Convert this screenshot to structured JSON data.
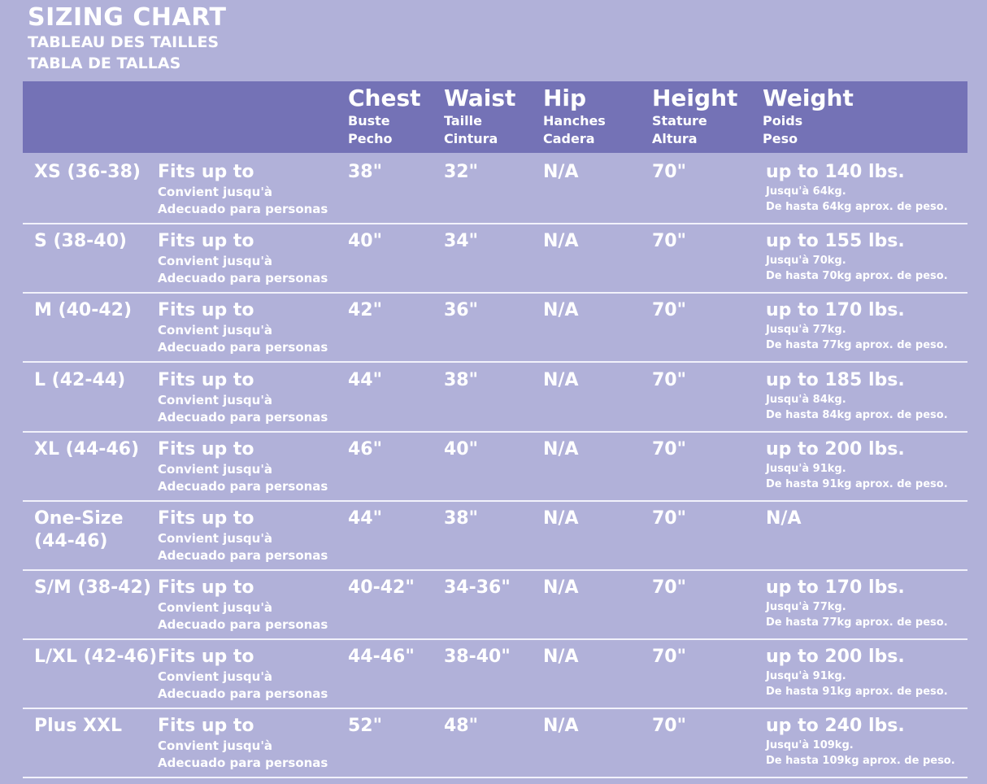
{
  "title": "SIZING CHART",
  "subtitle_fr": "TABLEAU DES TAILLES",
  "subtitle_es": "TABLA DE TALLAS",
  "colors": {
    "background": "#b1b1d9",
    "header": "#7472b6",
    "text": "#ffffff"
  },
  "columns": [
    {
      "en": "Chest",
      "fr": "Buste",
      "es": "Pecho"
    },
    {
      "en": "Waist",
      "fr": "Taille",
      "es": "Cintura"
    },
    {
      "en": "Hip",
      "fr": "Hanches",
      "es": "Cadera"
    },
    {
      "en": "Height",
      "fr": "Stature",
      "es": "Altura"
    },
    {
      "en": "Weight",
      "fr": "Poids",
      "es": "Peso"
    }
  ],
  "rows": [
    {
      "size": "XS (36-38)",
      "fits": "Fits up to",
      "fits_fr": "Convient jusqu'à",
      "fits_es": "Adecuado para personas",
      "chest": "38\"",
      "waist": "32\"",
      "hip": "N/A",
      "height": "70\"",
      "weight": "up to 140 lbs.",
      "weight_fr": "Jusqu'à 64kg.",
      "weight_es": "De hasta 64kg aprox. de peso."
    },
    {
      "size": "S (38-40)",
      "fits": "Fits up to",
      "fits_fr": "Convient jusqu'à",
      "fits_es": "Adecuado para personas",
      "chest": "40\"",
      "waist": "34\"",
      "hip": "N/A",
      "height": "70\"",
      "weight": "up to 155 lbs.",
      "weight_fr": "Jusqu'à 70kg.",
      "weight_es": "De hasta 70kg aprox. de peso."
    },
    {
      "size": "M (40-42)",
      "fits": "Fits up to",
      "fits_fr": "Convient jusqu'à",
      "fits_es": "Adecuado para personas",
      "chest": "42\"",
      "waist": "36\"",
      "hip": "N/A",
      "height": "70\"",
      "weight": "up to 170 lbs.",
      "weight_fr": "Jusqu'à 77kg.",
      "weight_es": "De hasta 77kg aprox. de peso."
    },
    {
      "size": "L (42-44)",
      "fits": "Fits up to",
      "fits_fr": "Convient jusqu'à",
      "fits_es": "Adecuado para personas",
      "chest": "44\"",
      "waist": "38\"",
      "hip": "N/A",
      "height": "70\"",
      "weight": "up to 185 lbs.",
      "weight_fr": "Jusqu'à 84kg.",
      "weight_es": "De hasta 84kg aprox. de peso."
    },
    {
      "size": "XL (44-46)",
      "fits": "Fits up to",
      "fits_fr": "Convient jusqu'à",
      "fits_es": "Adecuado para personas",
      "chest": "46\"",
      "waist": "40\"",
      "hip": "N/A",
      "height": "70\"",
      "weight": "up to 200 lbs.",
      "weight_fr": "Jusqu'à 91kg.",
      "weight_es": "De hasta 91kg aprox. de peso."
    },
    {
      "size": "One-Size (44-46)",
      "fits": "Fits up to",
      "fits_fr": "Convient jusqu'à",
      "fits_es": "Adecuado para personas",
      "chest": "44\"",
      "waist": "38\"",
      "hip": "N/A",
      "height": "70\"",
      "weight": "N/A",
      "weight_fr": "",
      "weight_es": ""
    },
    {
      "size": "S/M (38-42)",
      "fits": "Fits up to",
      "fits_fr": "Convient jusqu'à",
      "fits_es": "Adecuado para personas",
      "chest": "40-42\"",
      "waist": "34-36\"",
      "hip": "N/A",
      "height": "70\"",
      "weight": "up to 170 lbs.",
      "weight_fr": "Jusqu'à 77kg.",
      "weight_es": "De hasta 77kg aprox. de peso."
    },
    {
      "size": "L/XL (42-46)",
      "fits": "Fits up to",
      "fits_fr": "Convient jusqu'à",
      "fits_es": "Adecuado para personas",
      "chest": "44-46\"",
      "waist": "38-40\"",
      "hip": "N/A",
      "height": "70\"",
      "weight": "up to 200 lbs.",
      "weight_fr": "Jusqu'à 91kg.",
      "weight_es": "De hasta 91kg aprox. de peso."
    },
    {
      "size": "Plus XXL",
      "fits": "Fits up to",
      "fits_fr": "Convient jusqu'à",
      "fits_es": "Adecuado para personas",
      "chest": "52\"",
      "waist": "48\"",
      "hip": "N/A",
      "height": "70\"",
      "weight": "up to 240 lbs.",
      "weight_fr": "Jusqu'à 109kg.",
      "weight_es": "De hasta 109kg aprox. de peso."
    }
  ]
}
